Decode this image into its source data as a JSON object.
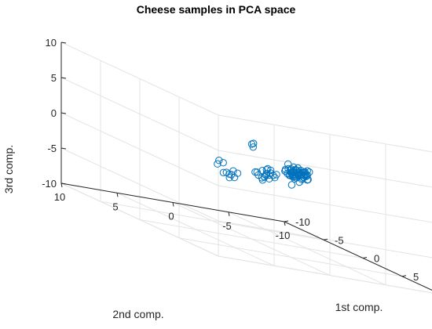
{
  "chart_data": {
    "type": "scatter",
    "title": "Cheese samples in PCA space",
    "xlabel": "1st comp.",
    "ylabel": "2nd comp.",
    "zlabel": "3rd comp.",
    "xlim": [
      -10,
      10
    ],
    "ylim": [
      -10,
      10
    ],
    "zlim": [
      -10,
      10
    ],
    "xticks": [
      "-10",
      "-5",
      "0",
      "5",
      "10"
    ],
    "yticks": [
      "10",
      "5",
      "0",
      "-5",
      "-10"
    ],
    "zticks": [
      "10",
      "5",
      "0",
      "-5",
      "-10"
    ],
    "grid": true,
    "marker_color": "#0072BD",
    "points": [
      [
        2.3,
        -2.0,
        -0.6
      ],
      [
        2.1,
        -2.4,
        0.6
      ],
      [
        2.6,
        -2.0,
        1.3
      ],
      [
        2.6,
        -2.2,
        1.7
      ],
      [
        2.0,
        -2.0,
        0.6
      ],
      [
        3.3,
        -2.6,
        1.3
      ],
      [
        3.4,
        -2.8,
        2.0
      ],
      [
        2.3,
        -1.7,
        1.6
      ],
      [
        2.7,
        -2.9,
        1.7
      ],
      [
        2.8,
        -1.8,
        0.7
      ],
      [
        2.6,
        -2.7,
        0.5
      ],
      [
        3.1,
        -1.6,
        1.7
      ],
      [
        2.3,
        -1.4,
        1.2
      ],
      [
        3.3,
        -2.1,
        2.0
      ],
      [
        2.3,
        -1.4,
        1.2
      ],
      [
        3.0,
        -2.9,
        2.0
      ],
      [
        2.4,
        -2.3,
        1.6
      ],
      [
        2.7,
        -1.8,
        1.4
      ],
      [
        2.9,
        -2.2,
        1.2
      ],
      [
        2.9,
        -1.2,
        1.1
      ],
      [
        2.7,
        -2.5,
        1.1
      ],
      [
        2.8,
        -2.0,
        1.8
      ],
      [
        2.4,
        -1.6,
        2.3
      ],
      [
        3.0,
        -2.2,
        0.2
      ],
      [
        3.6,
        -1.7,
        1.4
      ],
      [
        2.8,
        -2.5,
        1.5
      ],
      [
        3.0,
        -1.5,
        1.2
      ],
      [
        2.0,
        -2.1,
        1.4
      ],
      [
        2.4,
        -2.0,
        0.9
      ],
      [
        2.7,
        -2.7,
        0.7
      ],
      [
        3.0,
        -1.4,
        0.9
      ],
      [
        2.5,
        -2.2,
        1.0
      ],
      [
        2.8,
        -1.8,
        2.1
      ],
      [
        2.9,
        -1.6,
        1.2
      ],
      [
        2.8,
        -1.6,
        1.8
      ],
      [
        3.2,
        -1.7,
        1.2
      ],
      [
        3.3,
        -2.7,
        1.5
      ],
      [
        2.9,
        -1.9,
        0.9
      ],
      [
        3.1,
        -2.4,
        1.7
      ],
      [
        3.1,
        -2.5,
        1.0
      ],
      [
        3.7,
        -2.3,
        1.4
      ],
      [
        3.1,
        -1.7,
        0.6
      ],
      [
        3.8,
        -2.2,
        1.7
      ],
      [
        3.0,
        -2.6,
        1.0
      ],
      [
        2.7,
        -2.4,
        1.6
      ],
      [
        3.6,
        -2.2,
        1.9
      ],
      [
        3.1,
        -2.9,
        0.8
      ],
      [
        2.6,
        -2.9,
        1.1
      ],
      [
        2.8,
        -2.2,
        2.1
      ],
      [
        2.8,
        -2.5,
        1.3
      ],
      [
        2.9,
        -2.4,
        1.2
      ],
      [
        2.9,
        -2.1,
        1.3
      ],
      [
        2.8,
        -1.7,
        0.8
      ],
      [
        2.0,
        -2.2,
        1.1
      ],
      [
        2.5,
        -1.3,
        1.5
      ],
      [
        3.3,
        -2.7,
        0.8
      ],
      [
        2.7,
        -3.0,
        1.3
      ],
      [
        3.2,
        -2.4,
        1.7
      ],
      [
        2.9,
        -2.0,
        0.7
      ],
      [
        3.1,
        -2.1,
        1.6
      ],
      [
        0.5,
        -1.0,
        -0.2
      ],
      [
        0.8,
        -0.6,
        -0.6
      ],
      [
        -0.2,
        -1.5,
        0.1
      ],
      [
        1.0,
        -0.9,
        -0.7
      ],
      [
        0.3,
        -0.3,
        -0.3
      ],
      [
        0.9,
        -1.1,
        0.5
      ],
      [
        0.6,
        -1.3,
        0.0
      ],
      [
        0.2,
        -0.8,
        -1.0
      ],
      [
        0.7,
        -0.5,
        0.2
      ],
      [
        1.0,
        -1.4,
        -0.4
      ],
      [
        0.3,
        -1.1,
        -0.5
      ],
      [
        0.8,
        -0.9,
        0.6
      ],
      [
        -0.1,
        -0.7,
        -0.8
      ],
      [
        0.5,
        -1.6,
        -0.3
      ],
      [
        -0.7,
        -1.5,
        -1.6
      ],
      [
        -0.6,
        -1.6,
        -1.1
      ],
      [
        -1.5,
        -1.4,
        -0.9
      ],
      [
        -0.3,
        -1.8,
        -0.6
      ],
      [
        0.5,
        -1.9,
        -0.1
      ],
      [
        -0.8,
        -0.6,
        3.2
      ],
      [
        -0.3,
        -0.4,
        3.5
      ],
      [
        -0.2,
        -0.3,
        3.0
      ],
      [
        -5.0,
        -1.0,
        -1.5
      ],
      [
        -4.7,
        -0.8,
        -2.8
      ],
      [
        -5.3,
        -0.7,
        -1.9
      ],
      [
        -4.3,
        -1.4,
        -2.2
      ],
      [
        -5.3,
        -1.5,
        -2.9
      ],
      [
        -3.6,
        -1.3,
        -2.2
      ],
      [
        -4.0,
        -1.3,
        -3.0
      ],
      [
        -4.1,
        -1.1,
        -2.7
      ],
      [
        -5.4,
        -0.9,
        -1.4
      ],
      [
        -4.2,
        -1.0,
        -3.2
      ],
      [
        -4.8,
        -1.4,
        -2.9
      ]
    ]
  }
}
